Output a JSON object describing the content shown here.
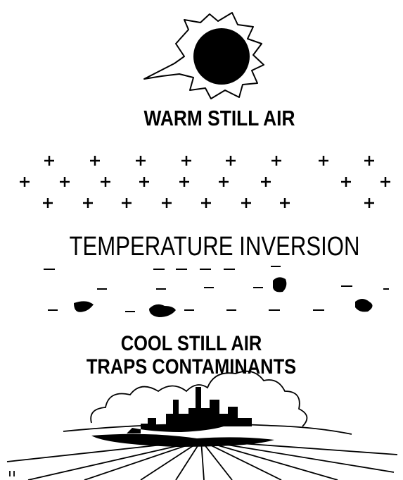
{
  "labels": {
    "top": "WARM STILL AIR",
    "middle": "TEMPERATURE INVERSION",
    "bottom_line1": "COOL STILL AIR",
    "bottom_line2": "TRAPS CONTAMINANTS"
  }
}
